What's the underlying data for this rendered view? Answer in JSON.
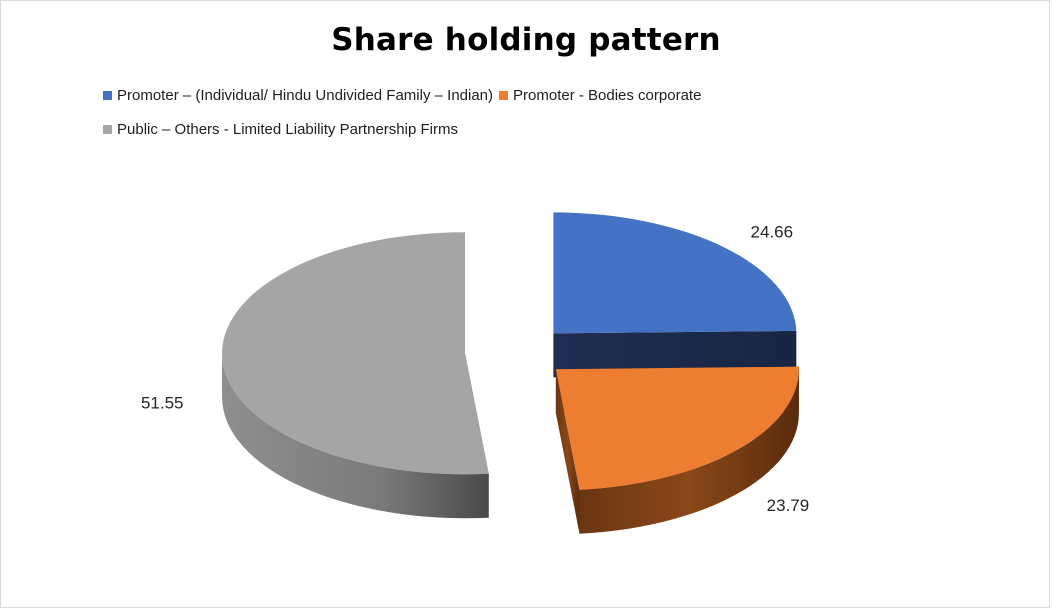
{
  "chart_data": {
    "type": "pie",
    "title": "Share holding pattern",
    "categories": [
      "Promoter – (Individual/ Hindu Undivided Family – Indian)",
      "Promoter - Bodies corporate",
      "Public – Others - Limited Liability Partnership Firms"
    ],
    "values": [
      24.66,
      23.79,
      51.55
    ],
    "data_labels": [
      "24.66",
      "23.79",
      "51.55"
    ],
    "colors": [
      "#4472C4",
      "#ED7D31",
      "#A5A5A5"
    ],
    "style": "3d-exploded",
    "legend_position": "top"
  }
}
